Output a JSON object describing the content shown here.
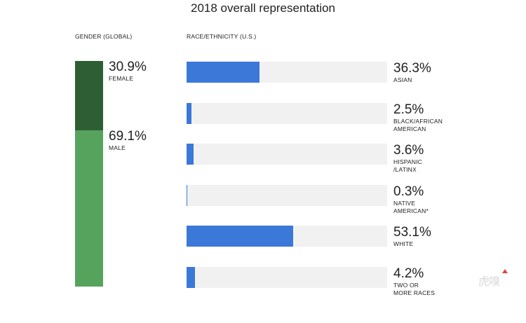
{
  "title": "2018 overall representation",
  "gender_label": "GENDER (GLOBAL)",
  "race_label": "RACE/ETHNICITY  (U.S.)",
  "watermark": "虎嗅",
  "colors": {
    "female": "#2e5e33",
    "male": "#56a35e",
    "race_fill": "#3b78d8",
    "race_track": "#f1f1f1"
  },
  "chart_data": [
    {
      "type": "bar",
      "title": "GENDER (GLOBAL)",
      "categories": [
        "FEMALE",
        "MALE"
      ],
      "values": [
        30.9,
        69.1
      ],
      "value_labels": [
        "30.9%",
        "69.1%"
      ],
      "stacked": true,
      "unit": "%",
      "ylim": [
        0,
        100
      ]
    },
    {
      "type": "bar",
      "title": "RACE/ETHNICITY  (U.S.)",
      "orientation": "horizontal",
      "categories": [
        "ASIAN",
        "BLACK/AFRICAN\nAMERICAN",
        "HISPANIC\n/LATINX",
        "NATIVE\nAMERICAN*",
        "WHITE",
        "TWO OR\nMORE RACES"
      ],
      "values": [
        36.3,
        2.5,
        3.6,
        0.3,
        53.1,
        4.2
      ],
      "value_labels": [
        "36.3%",
        "2.5%",
        "3.6%",
        "0.3%",
        "53.1%",
        "4.2%"
      ],
      "unit": "%",
      "xlim": [
        0,
        100
      ]
    }
  ]
}
